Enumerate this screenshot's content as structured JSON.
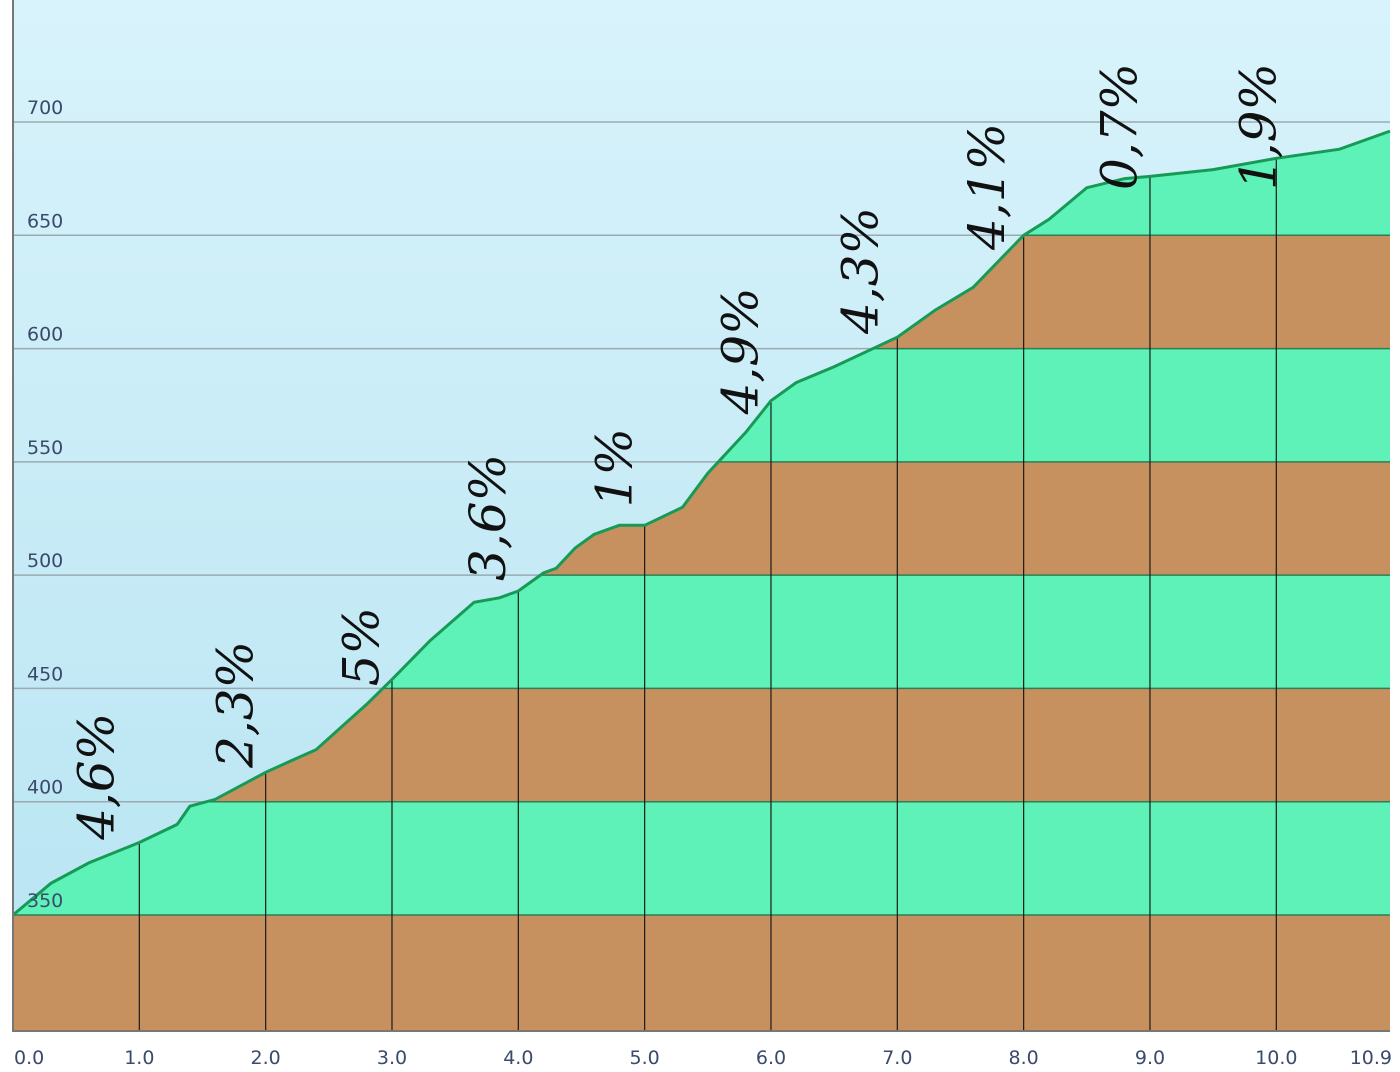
{
  "colors": {
    "sky_top": "#d8f3fb",
    "sky_bottom": "#b7e4f2",
    "green_band": "#5ef2b8",
    "brown_band": "#c6915f",
    "profile_line": "#169a56"
  },
  "chart_data": {
    "type": "area",
    "title": "",
    "xlabel": "",
    "ylabel": "",
    "x_unit": "km",
    "y_unit": "m",
    "xlim": [
      0,
      10.9
    ],
    "ylim": [
      300,
      705
    ],
    "x_ticks": [
      "0.0",
      "1.0",
      "2.0",
      "3.0",
      "4.0",
      "5.0",
      "6.0",
      "7.0",
      "8.0",
      "9.0",
      "10.0",
      "10.9"
    ],
    "x_tick_values": [
      0,
      1,
      2,
      3,
      4,
      5,
      6,
      7,
      8,
      9,
      10,
      10.9
    ],
    "y_ticks": [
      "350",
      "400",
      "450",
      "500",
      "550",
      "600",
      "650",
      "700"
    ],
    "y_tick_values": [
      350,
      400,
      450,
      500,
      550,
      600,
      650,
      700
    ],
    "grid": true,
    "band_interval": 50,
    "profile": {
      "x": [
        0,
        0.3,
        0.6,
        1.0,
        1.3,
        1.4,
        1.6,
        2.0,
        2.2,
        2.4,
        2.6,
        2.8,
        3.0,
        3.3,
        3.65,
        3.85,
        4.0,
        4.2,
        4.3,
        4.45,
        4.6,
        4.8,
        5.0,
        5.3,
        5.5,
        5.8,
        6.0,
        6.2,
        6.5,
        7.0,
        7.3,
        7.6,
        8.0,
        8.2,
        8.5,
        8.8,
        9.0,
        9.5,
        10.0,
        10.5,
        10.9
      ],
      "y": [
        350,
        364,
        373,
        382,
        390,
        398,
        401,
        413,
        418,
        423,
        433,
        443,
        454,
        471,
        488,
        490,
        493,
        501,
        503,
        512,
        518,
        522,
        522,
        530,
        545,
        563,
        577,
        585,
        592,
        605,
        617,
        627,
        650,
        657,
        671,
        675,
        676,
        679,
        684,
        688,
        696
      ]
    },
    "grade_labels": [
      {
        "text": "4,6%",
        "x": 0.7
      },
      {
        "text": "2,3%",
        "x": 1.8
      },
      {
        "text": "5%",
        "x": 2.8
      },
      {
        "text": "3,6%",
        "x": 3.8
      },
      {
        "text": "1%",
        "x": 4.8
      },
      {
        "text": "4,9%",
        "x": 5.8
      },
      {
        "text": "4,3%",
        "x": 6.75
      },
      {
        "text": "4,1%",
        "x": 7.75
      },
      {
        "text": "0,7%",
        "x": 8.8
      },
      {
        "text": "1,9%",
        "x": 9.9
      }
    ]
  }
}
